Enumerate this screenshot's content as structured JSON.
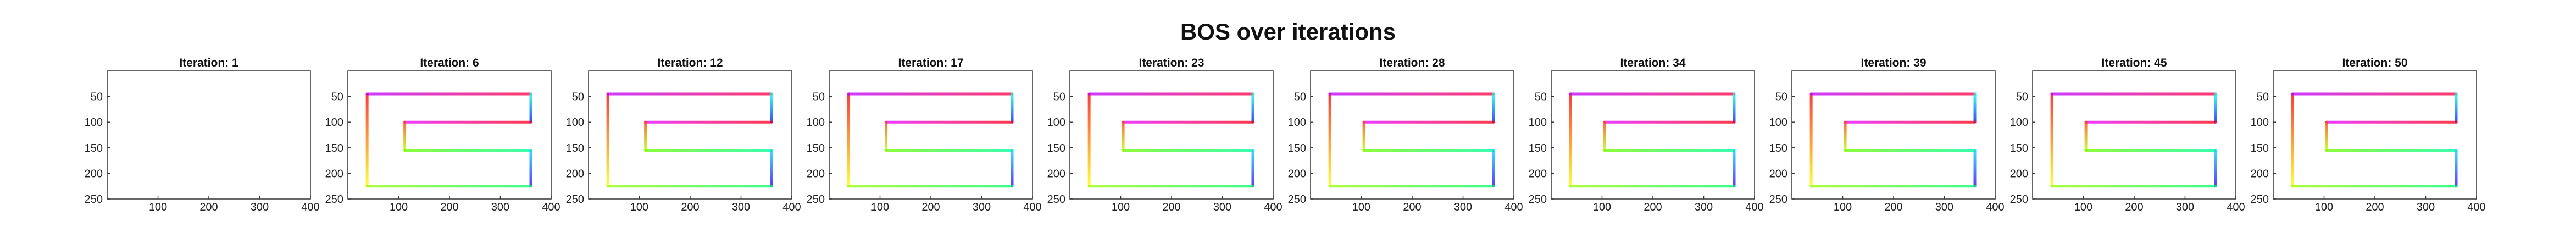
{
  "figure": {
    "title": "BOS over iterations"
  },
  "chart_data": {
    "type": "image-panels",
    "x_ticks": [
      100,
      200,
      300,
      400
    ],
    "y_ticks": [
      50,
      100,
      150,
      200,
      250
    ],
    "xlim": [
      0,
      400
    ],
    "ylim": [
      0,
      250
    ],
    "y_axis_reversed": true,
    "colormap": "hsv (red → yellow → green → cyan → blue → magenta along path)",
    "path_segments": [
      {
        "from": [
          38,
          45
        ],
        "to": [
          38,
          225
        ],
        "orientation": "vertical"
      },
      {
        "from": [
          38,
          45
        ],
        "to": [
          360,
          45
        ],
        "orientation": "horizontal"
      },
      {
        "from": [
          360,
          45
        ],
        "to": [
          360,
          100
        ],
        "orientation": "vertical"
      },
      {
        "from": [
          112,
          100
        ],
        "to": [
          360,
          100
        ],
        "orientation": "horizontal"
      },
      {
        "from": [
          112,
          100
        ],
        "to": [
          112,
          155
        ],
        "orientation": "vertical"
      },
      {
        "from": [
          112,
          155
        ],
        "to": [
          360,
          155
        ],
        "orientation": "horizontal"
      },
      {
        "from": [
          360,
          155
        ],
        "to": [
          360,
          225
        ],
        "orientation": "vertical"
      },
      {
        "from": [
          38,
          225
        ],
        "to": [
          360,
          225
        ],
        "orientation": "horizontal"
      }
    ],
    "panels": [
      {
        "title": "Iteration: 1",
        "iteration": 1,
        "filled": false,
        "inner_stem_x": 112
      },
      {
        "title": "Iteration: 6",
        "iteration": 6,
        "filled": true,
        "inner_stem_x": 112
      },
      {
        "title": "Iteration: 12",
        "iteration": 12,
        "filled": true,
        "inner_stem_x": 112
      },
      {
        "title": "Iteration: 17",
        "iteration": 17,
        "filled": true,
        "inner_stem_x": 112
      },
      {
        "title": "Iteration: 23",
        "iteration": 23,
        "filled": true,
        "inner_stem_x": 105
      },
      {
        "title": "Iteration: 28",
        "iteration": 28,
        "filled": true,
        "inner_stem_x": 105
      },
      {
        "title": "Iteration: 34",
        "iteration": 34,
        "filled": true,
        "inner_stem_x": 105
      },
      {
        "title": "Iteration: 39",
        "iteration": 39,
        "filled": true,
        "inner_stem_x": 105
      },
      {
        "title": "Iteration: 45",
        "iteration": 45,
        "filled": true,
        "inner_stem_x": 105
      },
      {
        "title": "Iteration: 50",
        "iteration": 50,
        "filled": true,
        "inner_stem_x": 105
      }
    ]
  }
}
